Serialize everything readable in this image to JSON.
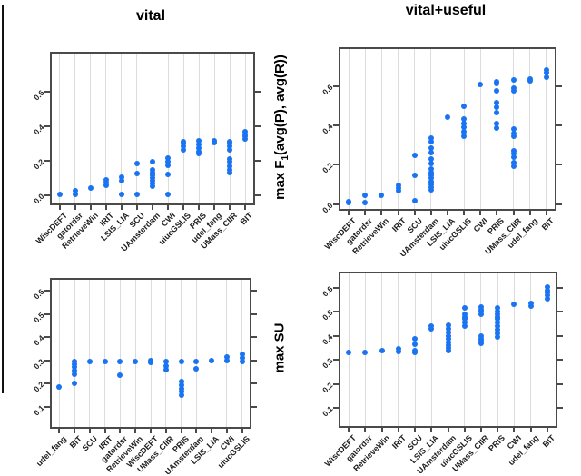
{
  "figure": {
    "titles": {
      "left": "vital",
      "right": "vital+useful"
    },
    "ylabel_f1": {
      "pre": "max F",
      "sub": "1",
      "post": "(avg(P), avg(R))"
    },
    "ylabel_su": "max SU",
    "dot_color": "#1a73f0",
    "grid_color": "#dcdcdc",
    "axis_color": "#4a4a4a"
  },
  "chart_data": [
    {
      "id": "vital_f1",
      "type": "scatter",
      "title": "vital",
      "ylabel": "max F1(avg(P), avg(R))",
      "grid": true,
      "legend": "none",
      "ylim": [
        -0.047,
        0.821
      ],
      "yticks": [
        0.0,
        0.2,
        0.4,
        0.6
      ],
      "categories": [
        "WiscDEFT",
        "gatordsr",
        "RetrieveWin",
        "IRIT",
        "LSIS_LIA",
        "SCU",
        "UAmsterdam",
        "CWI",
        "uiucGSLIS",
        "PRIS",
        "udel_fang",
        "UMass_CIIR",
        "BIT"
      ],
      "values": [
        [
          0.005
        ],
        [
          0.005,
          0.025
        ],
        [
          0.045
        ],
        [
          0.06,
          0.075,
          0.09
        ],
        [
          0.005,
          0.085,
          0.105
        ],
        [
          0.005,
          0.125,
          0.185
        ],
        [
          0.055,
          0.07,
          0.085,
          0.1,
          0.115,
          0.13,
          0.15,
          0.195
        ],
        [
          0.005,
          0.12,
          0.175,
          0.195,
          0.215
        ],
        [
          0.265,
          0.285,
          0.3,
          0.31
        ],
        [
          0.24,
          0.255,
          0.275,
          0.295,
          0.315
        ],
        [
          0.305,
          0.315
        ],
        [
          0.13,
          0.15,
          0.17,
          0.195,
          0.21,
          0.265,
          0.285,
          0.3,
          0.31
        ],
        [
          0.325,
          0.34,
          0.355,
          0.37
        ]
      ]
    },
    {
      "id": "vitaluseful_f1",
      "type": "scatter",
      "title": "vital+useful",
      "ylabel": "max F1(avg(P), avg(R))",
      "grid": true,
      "legend": "none",
      "ylim": [
        -0.025,
        0.787
      ],
      "yticks": [
        0.0,
        0.2,
        0.4,
        0.6
      ],
      "categories": [
        "WiscDEFT",
        "gatordsr",
        "RetrieveWin",
        "IRIT",
        "SCU",
        "UAmsterdam",
        "LSIS_LIA",
        "uiucGSLIS",
        "CWI",
        "PRIS",
        "UMass_CIIR",
        "udel_fang",
        "BIT"
      ],
      "values": [
        [
          0.005,
          0.01
        ],
        [
          0.005,
          0.045
        ],
        [
          0.045
        ],
        [
          0.065,
          0.08,
          0.095
        ],
        [
          0.015,
          0.145,
          0.245
        ],
        [
          0.07,
          0.085,
          0.1,
          0.115,
          0.13,
          0.145,
          0.16,
          0.18,
          0.205,
          0.23,
          0.26,
          0.285,
          0.315,
          0.335
        ],
        [
          0.44
        ],
        [
          0.345,
          0.365,
          0.39,
          0.41,
          0.43,
          0.495
        ],
        [
          0.605
        ],
        [
          0.385,
          0.41,
          0.465,
          0.49,
          0.515,
          0.575,
          0.61,
          0.62
        ],
        [
          0.19,
          0.21,
          0.24,
          0.255,
          0.27,
          0.345,
          0.36,
          0.38,
          0.575,
          0.59,
          0.63
        ],
        [
          0.625,
          0.635
        ],
        [
          0.645,
          0.665,
          0.68
        ]
      ]
    },
    {
      "id": "vital_su",
      "type": "scatter",
      "title": "vital",
      "ylabel": "max SU",
      "grid": true,
      "legend": "none",
      "ylim": [
        0.014,
        0.647
      ],
      "yticks": [
        0.1,
        0.2,
        0.3,
        0.4,
        0.5,
        0.6
      ],
      "categories": [
        "udel_fang",
        "BIT",
        "SCU",
        "IRIT",
        "gatordsr",
        "RetrieveWin",
        "WiscDEFT",
        "UMass_CIIR",
        "PRIS",
        "UAmsterdam",
        "LSIS_LIA",
        "CWI",
        "uiucGSLIS"
      ],
      "values": [
        [
          0.185
        ],
        [
          0.2,
          0.24,
          0.255,
          0.27,
          0.285,
          0.295
        ],
        [
          0.295
        ],
        [
          0.295
        ],
        [
          0.235,
          0.295
        ],
        [
          0.295
        ],
        [
          0.29,
          0.3
        ],
        [
          0.26,
          0.275,
          0.295
        ],
        [
          0.15,
          0.165,
          0.18,
          0.195,
          0.21,
          0.295
        ],
        [
          0.265,
          0.295
        ],
        [
          0.3
        ],
        [
          0.3,
          0.315
        ],
        [
          0.295,
          0.31,
          0.325
        ]
      ]
    },
    {
      "id": "vitaluseful_su",
      "type": "scatter",
      "title": "vital+useful",
      "ylabel": "max SU",
      "grid": true,
      "legend": "none",
      "ylim": [
        0.026,
        0.66
      ],
      "yticks": [
        0.1,
        0.2,
        0.3,
        0.4,
        0.5,
        0.6
      ],
      "categories": [
        "WiscDEFT",
        "gatordsr",
        "RetrieveWin",
        "IRIT",
        "SCU",
        "LSIS_LIA",
        "UAmsterdam",
        "uiucGSLIS",
        "UMass_CIIR",
        "PRIS",
        "CWI",
        "udel_fang",
        "BIT"
      ],
      "values": [
        [
          0.33
        ],
        [
          0.33
        ],
        [
          0.34
        ],
        [
          0.335,
          0.345
        ],
        [
          0.33,
          0.34,
          0.365,
          0.39
        ],
        [
          0.43,
          0.44
        ],
        [
          0.34,
          0.35,
          0.36,
          0.375,
          0.39,
          0.4,
          0.415,
          0.43,
          0.445
        ],
        [
          0.44,
          0.455,
          0.47,
          0.48,
          0.49,
          0.515
        ],
        [
          0.37,
          0.38,
          0.39,
          0.4,
          0.49,
          0.5,
          0.51,
          0.52
        ],
        [
          0.395,
          0.41,
          0.425,
          0.44,
          0.455,
          0.47,
          0.48,
          0.49,
          0.5,
          0.515
        ],
        [
          0.53
        ],
        [
          0.525,
          0.535
        ],
        [
          0.555,
          0.57,
          0.58,
          0.59,
          0.605
        ]
      ]
    }
  ]
}
